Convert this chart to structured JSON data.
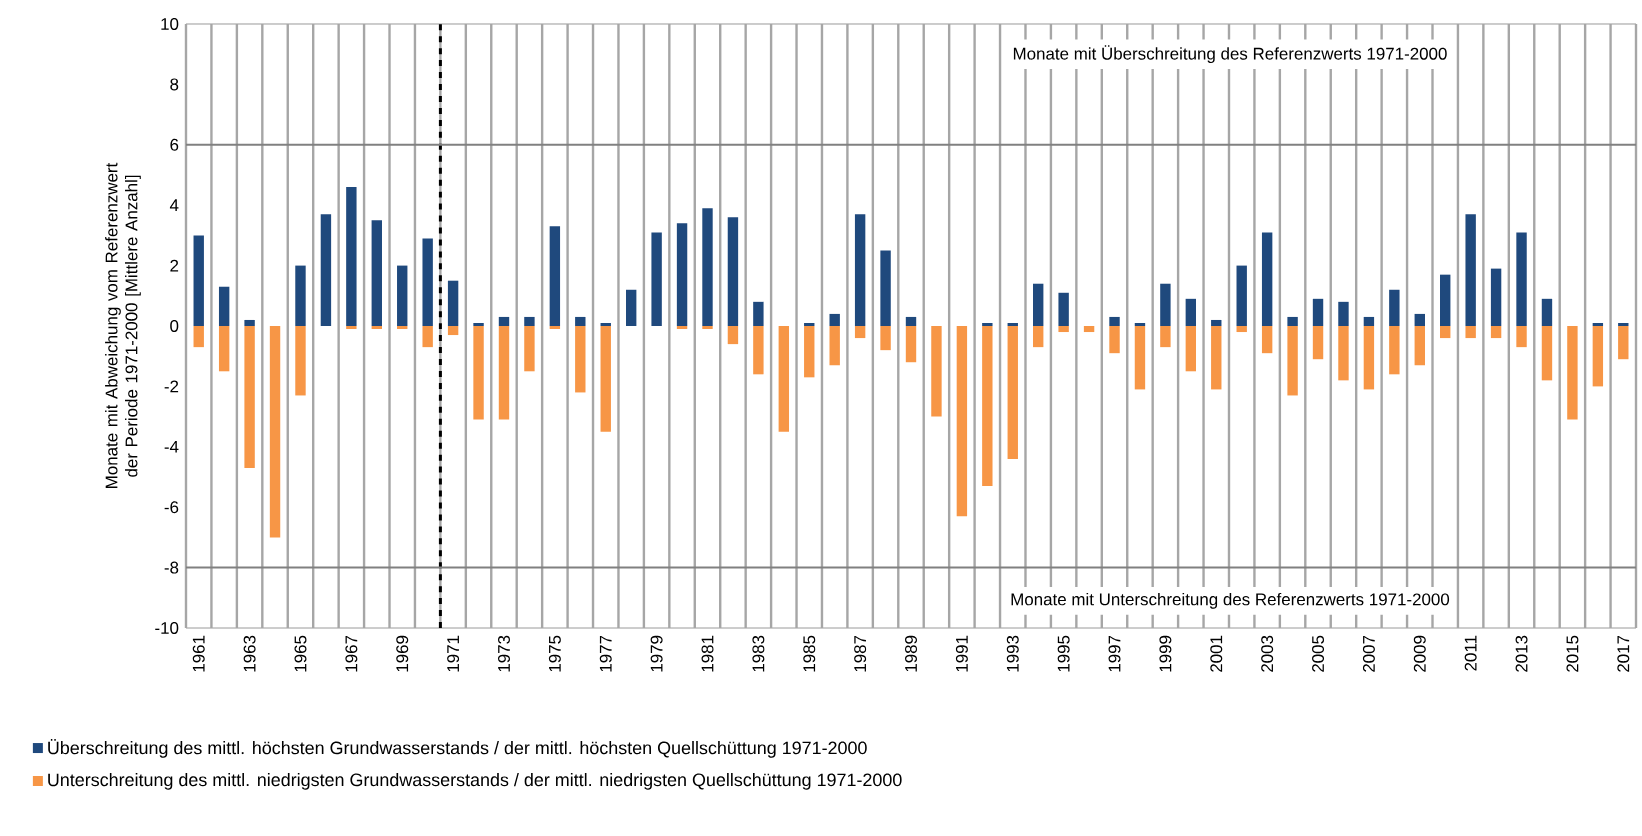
{
  "chart_data": {
    "type": "bar",
    "ylabel": "Monate mit Abweichung vom Referenzwert der Periode 1971-2000 [Mittlere Anzahl]",
    "x": [
      1961,
      1962,
      1963,
      1964,
      1965,
      1966,
      1967,
      1968,
      1969,
      1970,
      1971,
      1972,
      1973,
      1974,
      1975,
      1976,
      1977,
      1978,
      1979,
      1980,
      1981,
      1982,
      1983,
      1984,
      1985,
      1986,
      1987,
      1988,
      1989,
      1990,
      1991,
      1992,
      1993,
      1994,
      1995,
      1996,
      1997,
      1998,
      1999,
      2000,
      2001,
      2002,
      2003,
      2004,
      2005,
      2006,
      2007,
      2008,
      2009,
      2010,
      2011,
      2012,
      2013,
      2014,
      2015,
      2016,
      2017
    ],
    "xlim": [
      1960.5,
      2017.5
    ],
    "xticks": [
      1961,
      1963,
      1965,
      1967,
      1969,
      1971,
      1973,
      1975,
      1977,
      1979,
      1981,
      1983,
      1985,
      1987,
      1989,
      1991,
      1993,
      1995,
      1997,
      1999,
      2001,
      2003,
      2005,
      2007,
      2009,
      2011,
      2013,
      2015,
      2017
    ],
    "ylim": [
      -10,
      10
    ],
    "yticks": [
      -10,
      -8,
      -6,
      -4,
      -2,
      0,
      2,
      4,
      6,
      8,
      10
    ],
    "grid": "x",
    "legend": "bottom",
    "stacked": true,
    "series": [
      {
        "name": "Überschreitung des mittl. höchsten Grundwasserstands / der mittl. höchsten Quellschüttung 1971-2000",
        "color": "#1f497d",
        "values": [
          3.0,
          1.3,
          0.2,
          0,
          2.0,
          3.7,
          4.6,
          3.5,
          2.0,
          2.9,
          1.5,
          0.1,
          0.3,
          0.3,
          3.3,
          0.3,
          0.1,
          1.2,
          3.1,
          3.4,
          3.9,
          3.6,
          0.8,
          0,
          0.1,
          0.4,
          3.7,
          2.5,
          0.3,
          0,
          0,
          0.1,
          0.1,
          1.4,
          1.1,
          0,
          0.3,
          0.1,
          1.4,
          0.9,
          0.2,
          2.0,
          3.1,
          0.3,
          0.9,
          0.8,
          0.3,
          1.2,
          0.4,
          1.7,
          3.7,
          1.9,
          3.1,
          0.9,
          0,
          0.1,
          0.1
        ]
      },
      {
        "name": "Unterschreitung des mittl. niedrigsten Grundwasserstands / der mittl. niedrigsten Quellschüttung 1971-2000",
        "color": "#f79646",
        "values": [
          -0.7,
          -1.5,
          -4.7,
          -7.0,
          -2.3,
          0,
          -0.1,
          -0.1,
          -0.1,
          -0.7,
          -0.3,
          -3.1,
          -3.1,
          -1.5,
          -0.1,
          -2.2,
          -3.5,
          0,
          0,
          -0.1,
          -0.1,
          -0.6,
          -1.6,
          -3.5,
          -1.7,
          -1.3,
          -0.4,
          -0.8,
          -1.2,
          -3.0,
          -6.3,
          -5.3,
          -4.4,
          -0.7,
          -0.2,
          -0.2,
          -0.9,
          -2.1,
          -0.7,
          -1.5,
          -2.1,
          -0.2,
          -0.9,
          -2.3,
          -1.1,
          -1.8,
          -2.1,
          -1.6,
          -1.3,
          -0.4,
          -0.4,
          -0.4,
          -0.7,
          -1.8,
          -3.1,
          -2.0,
          -1.1
        ]
      }
    ],
    "ref_lines": [
      {
        "axis": "x",
        "value": 1970.5,
        "color": "#000000",
        "line_style": "dashed"
      },
      {
        "axis": "y",
        "value": 6,
        "color": "#808080"
      },
      {
        "axis": "y",
        "value": -8,
        "color": "#808080"
      }
    ],
    "annotations": [
      "Monate mit Überschreitung des Referenzwerts 1971-2000",
      "Monate mit Unterschreitung des Referenzwerts 1971-2000"
    ]
  }
}
